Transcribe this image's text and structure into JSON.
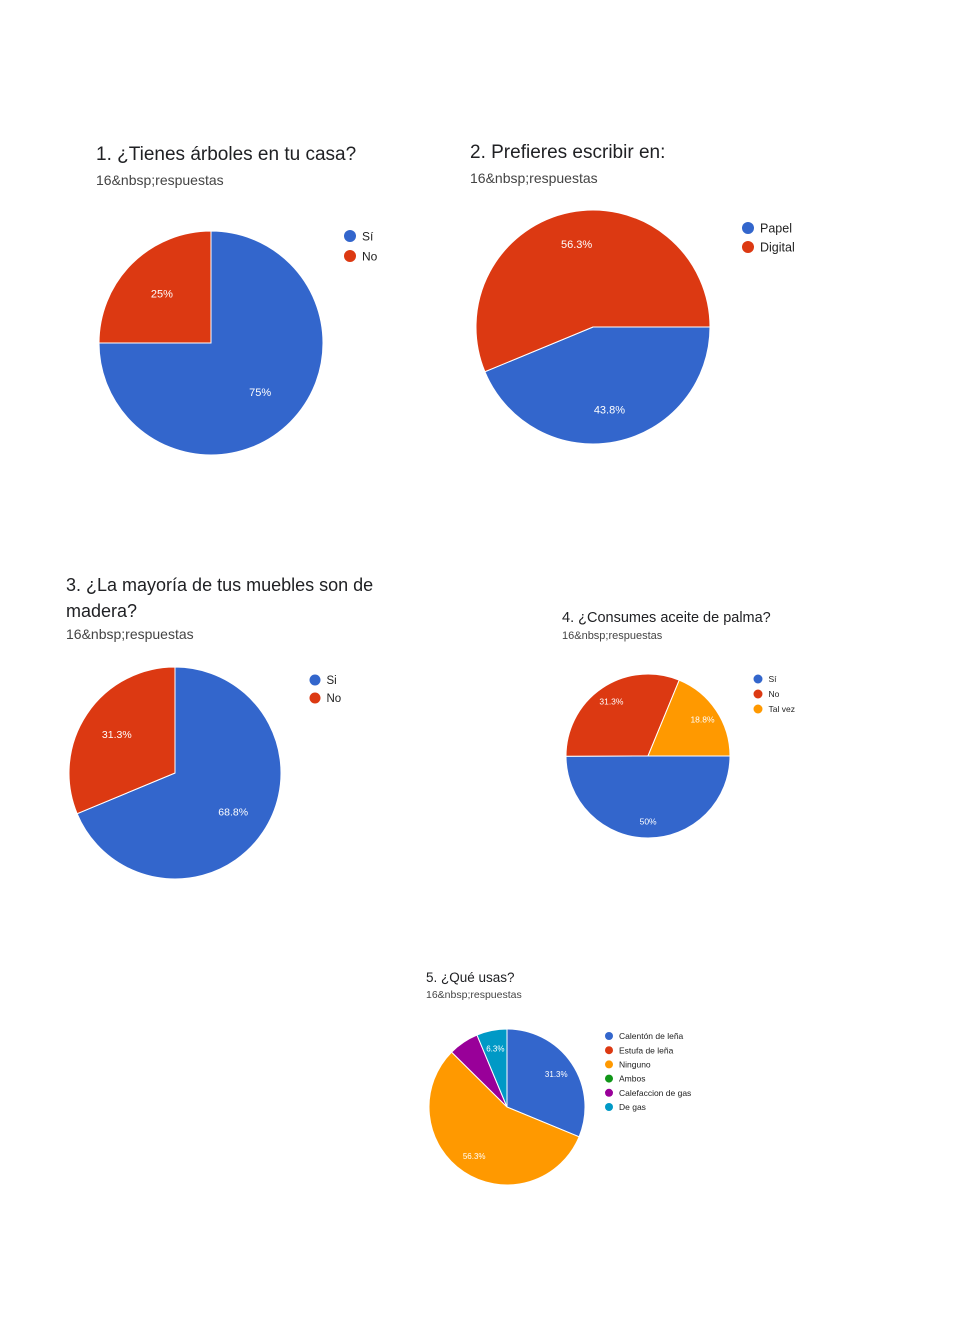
{
  "colors": {
    "blue": "#3366cc",
    "red": "#dc3912",
    "orange": "#ff9900",
    "green": "#109618",
    "purple": "#990099",
    "teal": "#0099c6"
  },
  "chart_data": [
    {
      "type": "pie",
      "title": "1. ¿Tienes árboles en tu casa?",
      "subtitle": "16&nbsp;respuestas",
      "legend_position": "right",
      "categories": [
        "Sí",
        "No"
      ],
      "values": [
        75,
        25
      ],
      "labels": [
        "75%",
        "25%"
      ],
      "colors": [
        "#3366cc",
        "#dc3912"
      ]
    },
    {
      "type": "pie",
      "title": "2. Prefieres escribir en:",
      "subtitle": "16&nbsp;respuestas",
      "legend_position": "right",
      "categories": [
        "Papel",
        "Digital"
      ],
      "values": [
        43.8,
        56.3
      ],
      "labels": [
        "43.8%",
        "56.3%"
      ],
      "colors": [
        "#3366cc",
        "#dc3912"
      ]
    },
    {
      "type": "pie",
      "title": "3. ¿La mayoría de tus muebles son de madera?",
      "subtitle": "16&nbsp;respuestas",
      "legend_position": "right",
      "categories": [
        "Si",
        "No"
      ],
      "values": [
        68.8,
        31.3
      ],
      "labels": [
        "68.8%",
        "31.3%"
      ],
      "colors": [
        "#3366cc",
        "#dc3912"
      ]
    },
    {
      "type": "pie",
      "title": "4. ¿Consumes aceite de palma?",
      "subtitle": "16&nbsp;respuestas",
      "legend_position": "right",
      "categories": [
        "Sí",
        "No",
        "Tal vez"
      ],
      "values": [
        50,
        31.3,
        18.8
      ],
      "labels": [
        "50%",
        "31.3%",
        "18.8%"
      ],
      "colors": [
        "#3366cc",
        "#dc3912",
        "#ff9900"
      ]
    },
    {
      "type": "pie",
      "title": "5. ¿Qué usas?",
      "subtitle": "16&nbsp;respuestas",
      "legend_position": "right",
      "categories": [
        "Calentón de leña",
        "Estufa de leña",
        "Ninguno",
        "Ambos",
        "Calefaccion de gas",
        "De gas"
      ],
      "values": [
        31.3,
        0,
        56.3,
        0,
        6.3,
        6.3
      ],
      "labels": [
        "31.3%",
        "",
        "56.3%",
        "",
        "",
        "6.3%"
      ],
      "colors": [
        "#3366cc",
        "#dc3912",
        "#ff9900",
        "#109618",
        "#990099",
        "#0099c6"
      ]
    }
  ]
}
